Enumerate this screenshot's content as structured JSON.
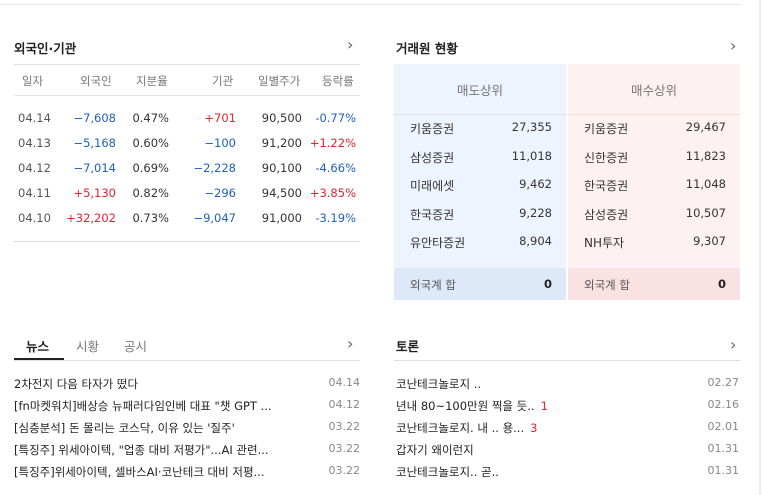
{
  "investor": {
    "title": "외국인·기관",
    "headers": [
      "일자",
      "외국인",
      "지분율",
      "기관",
      "일별주가",
      "등락률"
    ],
    "rows": [
      {
        "date": "04.14",
        "foreign": "−7,608",
        "share": "0.47%",
        "inst": "+701",
        "price": "90,500",
        "change": "-0.77%"
      },
      {
        "date": "04.13",
        "foreign": "−5,168",
        "share": "0.60%",
        "inst": "−100",
        "price": "91,200",
        "change": "+1.22%"
      },
      {
        "date": "04.12",
        "foreign": "−7,014",
        "share": "0.69%",
        "inst": "−2,228",
        "price": "90,100",
        "change": "-4.66%"
      },
      {
        "date": "04.11",
        "foreign": "+5,130",
        "share": "0.82%",
        "inst": "−296",
        "price": "94,500",
        "change": "+3.85%"
      },
      {
        "date": "04.10",
        "foreign": "+32,202",
        "share": "0.73%",
        "inst": "−9,047",
        "price": "91,000",
        "change": "-3.19%"
      }
    ]
  },
  "broker": {
    "title": "거래원 현황",
    "sell_title": "매도상위",
    "buy_title": "매수상위",
    "sell": [
      {
        "name": "키움증권",
        "value": "27,355"
      },
      {
        "name": "삼성증권",
        "value": "11,018"
      },
      {
        "name": "미래에셋",
        "value": "9,462"
      },
      {
        "name": "한국증권",
        "value": "9,228"
      },
      {
        "name": "유안타증권",
        "value": "8,904"
      }
    ],
    "buy": [
      {
        "name": "키움증권",
        "value": "29,467"
      },
      {
        "name": "신한증권",
        "value": "11,823"
      },
      {
        "name": "한국증권",
        "value": "11,048"
      },
      {
        "name": "삼성증권",
        "value": "10,507"
      },
      {
        "name": "NH투자",
        "value": "9,307"
      }
    ],
    "sell_foot": {
      "label": "외국계 합",
      "value": "0"
    },
    "buy_foot": {
      "label": "외국계 합",
      "value": "0"
    }
  },
  "news": {
    "tabs": [
      "뉴스",
      "시황",
      "공시"
    ],
    "items": [
      {
        "title": "2차전지 다음 타자가 떴다",
        "date": "04.14"
      },
      {
        "title": "[fn마켓워치]배상승 뉴패러다임인베 대표 \"챗 GPT ...",
        "date": "04.12"
      },
      {
        "title": "[심층분석] 돈 몰리는 코스닥, 이유 있는 '질주'",
        "date": "03.22"
      },
      {
        "title": "[특징주] 위세아이텍, \"업종 대비 저평가\"...AI 관련...",
        "date": "03.22"
      },
      {
        "title": "[특징주]위세아이텍, 셀바스AI·코난테크 대비 저평...",
        "date": "03.22"
      }
    ]
  },
  "discussion": {
    "title": "토론",
    "items": [
      {
        "title": "코난테크놀로지 ..",
        "count": "",
        "date": "02.27"
      },
      {
        "title": "년내 80~100만원 찍을 듯..",
        "count": "1",
        "date": "02.16"
      },
      {
        "title": "코난테크놀로지. 내 .. 용...",
        "count": "3",
        "date": "02.01"
      },
      {
        "title": "갑자기 왜이런지",
        "count": "",
        "date": "01.31"
      },
      {
        "title": "코난테크놀로지.. 곧..",
        "count": "",
        "date": "01.31"
      }
    ]
  },
  "icons": {
    "chevron": "chevron-right-icon"
  }
}
